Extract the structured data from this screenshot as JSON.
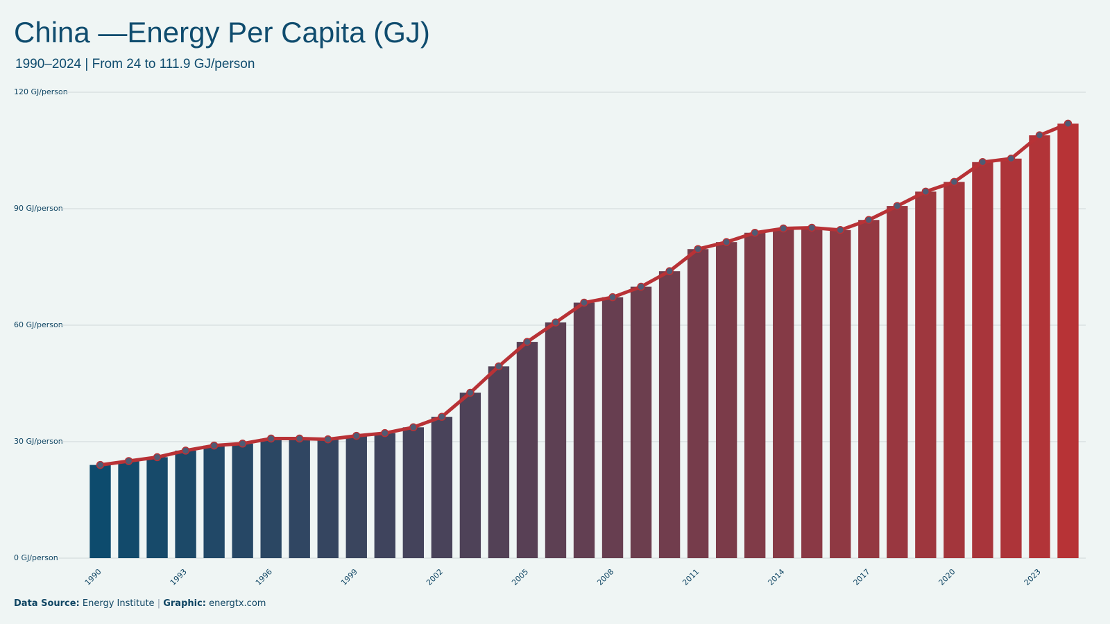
{
  "chart_data": {
    "type": "bar_line",
    "title": "China —Energy Per Capita (GJ)",
    "subtitle": "1990–2024 | From 24 to 111.9 GJ/person",
    "categories": [
      "1990",
      null,
      null,
      "1993",
      null,
      null,
      "1996",
      null,
      null,
      "1999",
      null,
      null,
      "2002",
      null,
      null,
      "2005",
      null,
      null,
      "2008",
      null,
      null,
      "2011",
      null,
      null,
      "2014",
      null,
      null,
      "2017",
      null,
      null,
      "2020",
      null,
      null,
      "2023",
      null
    ],
    "values": [
      24.0,
      25.0,
      26.0,
      27.7,
      29.0,
      29.5,
      30.8,
      30.8,
      30.6,
      31.5,
      32.2,
      33.7,
      36.4,
      42.6,
      49.4,
      55.7,
      60.7,
      65.8,
      67.2,
      69.9,
      73.9,
      79.6,
      81.4,
      83.8,
      84.9,
      85.1,
      84.5,
      87.1,
      90.7,
      94.4,
      96.9,
      102.0,
      102.9,
      108.9,
      111.9
    ],
    "bar_color_start": "#0d4b6d",
    "bar_color_end": "#b73336",
    "line_color": "#b83236",
    "marker_color": "#4f5b74",
    "ylim": [
      0,
      120
    ],
    "yticks": [
      {
        "value": 0,
        "label": "0 GJ/person"
      },
      {
        "value": 30,
        "label": "30 GJ/person"
      },
      {
        "value": 60,
        "label": "60 GJ/person"
      },
      {
        "value": 90,
        "label": "90 GJ/person"
      },
      {
        "value": 120,
        "label": "120 GJ/person"
      }
    ],
    "grid": true,
    "footer": {
      "source_label": "Data Source:",
      "source": "Energy Institute",
      "separator": "|",
      "graphic_label": "Graphic:",
      "graphic": "energtx.com"
    }
  }
}
